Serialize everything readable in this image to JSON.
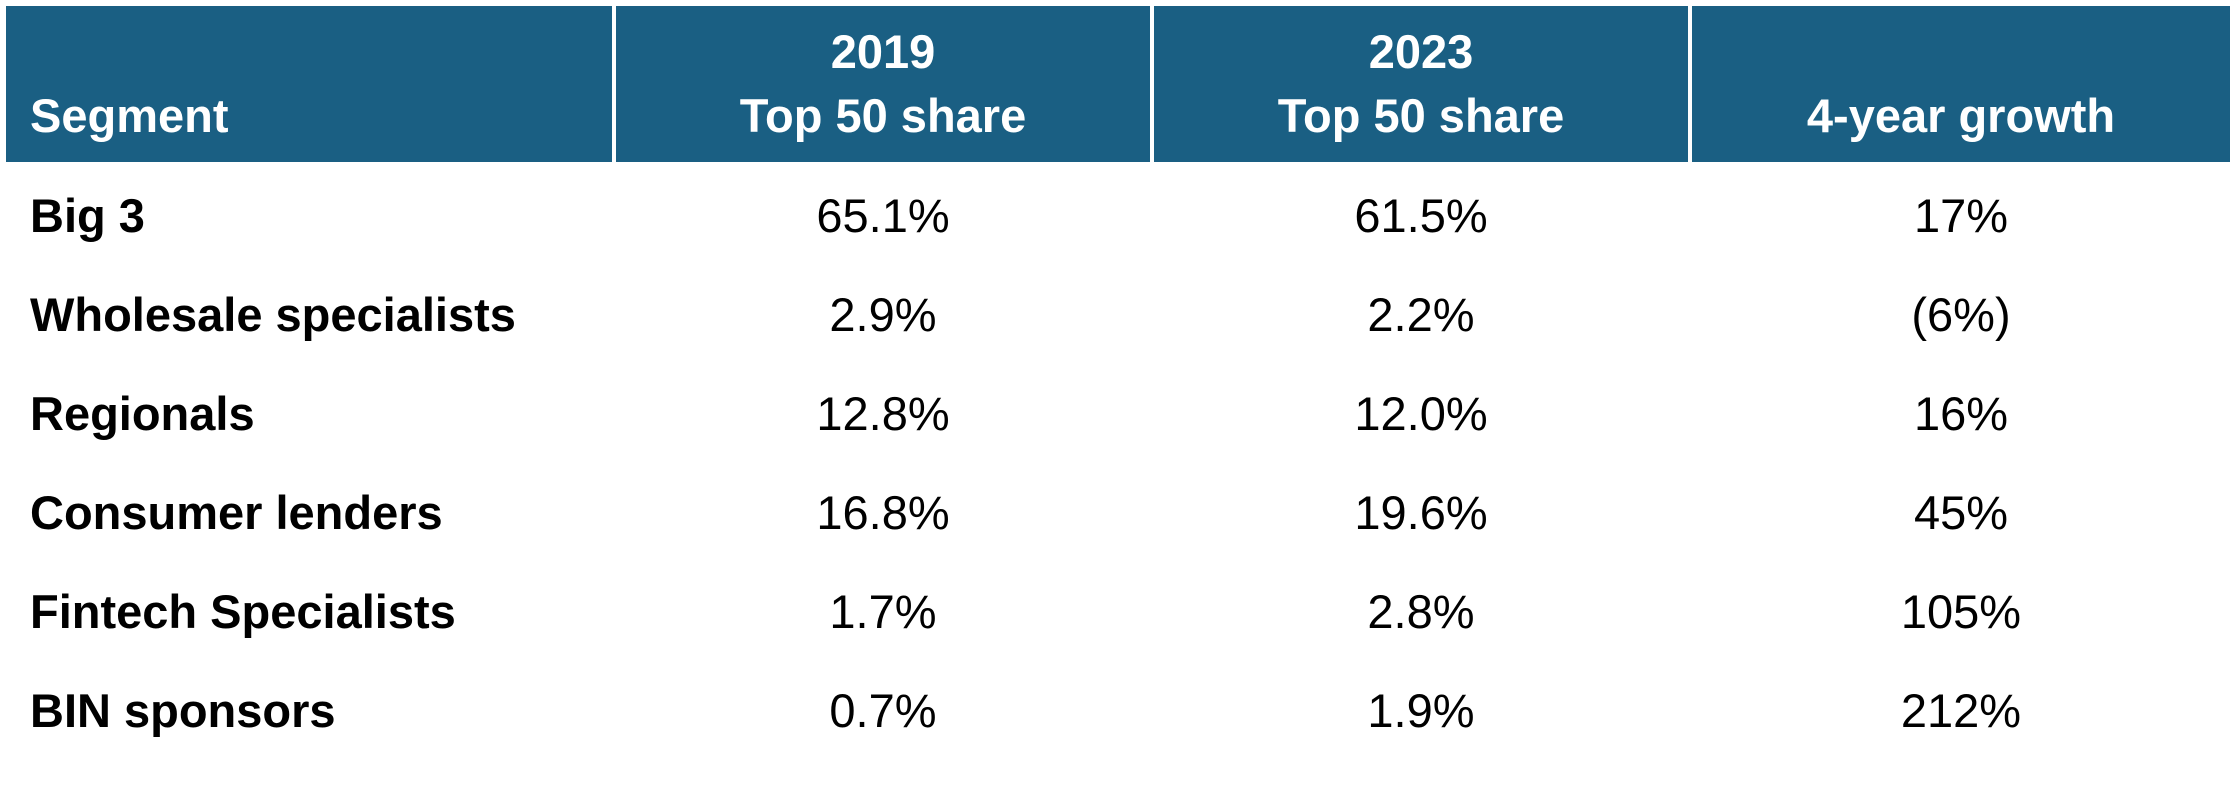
{
  "table": {
    "headers": [
      {
        "lines": [
          "Segment"
        ]
      },
      {
        "lines": [
          "2019",
          "Top 50 share"
        ]
      },
      {
        "lines": [
          "2023",
          "Top 50 share"
        ]
      },
      {
        "lines": [
          "4-year growth"
        ]
      }
    ],
    "rows": [
      {
        "segment": "Big 3",
        "share_2019": "65.1%",
        "share_2023": "61.5%",
        "growth": "17%"
      },
      {
        "segment": "Wholesale specialists",
        "share_2019": "2.9%",
        "share_2023": "2.2%",
        "growth": "(6%)"
      },
      {
        "segment": "Regionals",
        "share_2019": "12.8%",
        "share_2023": "12.0%",
        "growth": "16%"
      },
      {
        "segment": "Consumer lenders",
        "share_2019": "16.8%",
        "share_2023": "19.6%",
        "growth": "45%"
      },
      {
        "segment": "Fintech Specialists",
        "share_2019": "1.7%",
        "share_2023": "2.8%",
        "growth": "105%"
      },
      {
        "segment": "BIN sponsors",
        "share_2019": "0.7%",
        "share_2023": "1.9%",
        "growth": "212%"
      }
    ]
  },
  "colors": {
    "header_background": "#1a5f83",
    "header_text": "#ffffff",
    "body_text": "#000000"
  }
}
